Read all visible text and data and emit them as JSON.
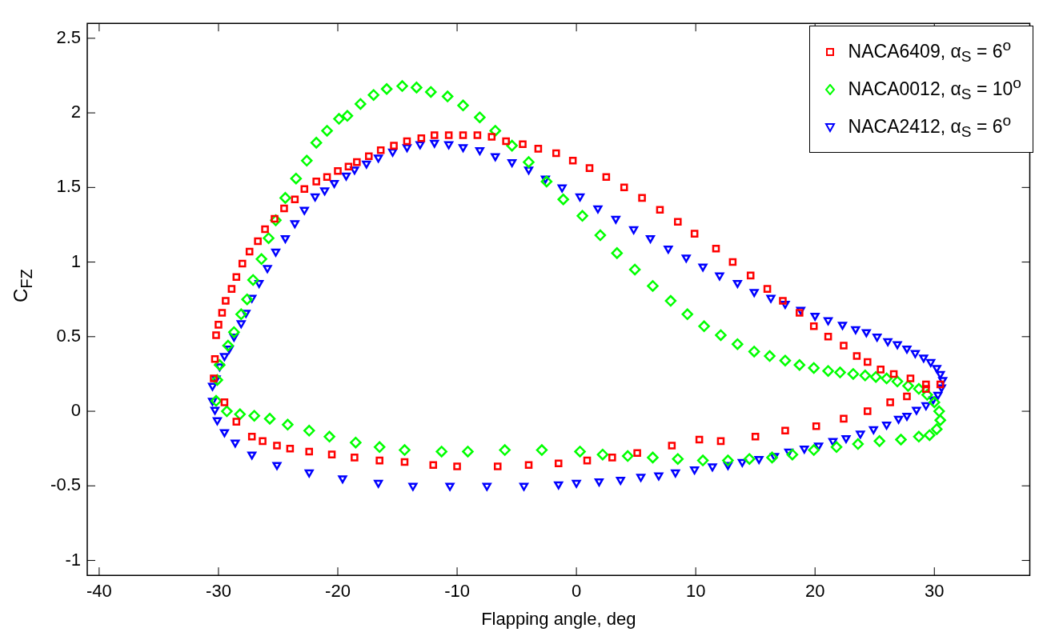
{
  "chart_data": {
    "type": "scatter",
    "xlabel": "Flapping angle, deg",
    "ylabel": "C$_{FZ}$",
    "xlim": [
      -41,
      38
    ],
    "xticks": [
      -40,
      -30,
      -20,
      -10,
      0,
      10,
      20,
      30
    ],
    "ylim": [
      -1.1,
      2.6
    ],
    "yticks": [
      -1,
      -0.5,
      0,
      0.5,
      1,
      1.5,
      2,
      2.5
    ],
    "legend": "top right",
    "series": [
      {
        "name": "NACA6409, α$_{S}$ = 6$^{o}$",
        "color": "#ff0000",
        "marker": "square",
        "x": [
          -30.4,
          -30.3,
          -30.2,
          -30,
          -29.7,
          -29.4,
          -28.9,
          -28.5,
          -28,
          -27.4,
          -26.7,
          -26.1,
          -25.3,
          -24.5,
          -23.6,
          -22.8,
          -21.8,
          -20.9,
          -20,
          -19.1,
          -18.4,
          -17.4,
          -16.4,
          -15.3,
          -14.2,
          -13,
          -11.9,
          -10.7,
          -9.5,
          -8.3,
          -7.1,
          -5.9,
          -4.5,
          -3.2,
          -1.7,
          -0.3,
          1.1,
          2.5,
          4,
          5.5,
          7,
          8.5,
          9.9,
          11.7,
          13.1,
          14.6,
          16,
          17.3,
          18.7,
          19.9,
          21.1,
          22.4,
          23.5,
          24.4,
          25.5,
          26.6,
          28,
          29.3,
          30.5,
          29.3,
          27.7,
          26.3,
          24.4,
          22.4,
          20.1,
          17.5,
          15,
          12.1,
          10.3,
          8,
          5.1,
          3,
          0.9,
          -1.5,
          -4,
          -6.6,
          -10,
          -12,
          -14.4,
          -16.5,
          -18.6,
          -20.5,
          -22.4,
          -24,
          -25.1,
          -26.3,
          -27.2,
          -28.5,
          -29.5
        ],
        "values": [
          0.22,
          0.35,
          0.51,
          0.58,
          0.66,
          0.74,
          0.82,
          0.9,
          0.99,
          1.07,
          1.14,
          1.22,
          1.29,
          1.36,
          1.42,
          1.49,
          1.54,
          1.57,
          1.61,
          1.64,
          1.67,
          1.71,
          1.75,
          1.78,
          1.81,
          1.83,
          1.85,
          1.85,
          1.85,
          1.85,
          1.84,
          1.81,
          1.79,
          1.76,
          1.73,
          1.68,
          1.63,
          1.57,
          1.5,
          1.43,
          1.35,
          1.27,
          1.19,
          1.09,
          1,
          0.91,
          0.82,
          0.74,
          0.66,
          0.57,
          0.5,
          0.44,
          0.37,
          0.33,
          0.28,
          0.25,
          0.22,
          0.18,
          0.18,
          0.15,
          0.1,
          0.06,
          0,
          -0.05,
          -0.1,
          -0.13,
          -0.17,
          -0.2,
          -0.19,
          -0.23,
          -0.28,
          -0.31,
          -0.33,
          -0.35,
          -0.36,
          -0.37,
          -0.37,
          -0.36,
          -0.34,
          -0.33,
          -0.31,
          -0.29,
          -0.27,
          -0.25,
          -0.23,
          -0.2,
          -0.17,
          -0.07,
          0.06
        ]
      },
      {
        "name": "NACA0012, α$_{S}$ = 10$^{o}$",
        "color": "#00ff00",
        "marker": "diamond",
        "x": [
          -30.2,
          -30.1,
          -29.9,
          -29.2,
          -28.7,
          -28.1,
          -27.6,
          -27.1,
          -26.4,
          -25.8,
          -25.2,
          -24.4,
          -23.5,
          -22.6,
          -21.8,
          -20.9,
          -19.9,
          -19.2,
          -18.1,
          -17,
          -15.9,
          -14.6,
          -13.4,
          -12.2,
          -10.8,
          -9.5,
          -8.1,
          -6.8,
          -5.4,
          -4,
          -2.5,
          -1.1,
          0.5,
          2,
          3.4,
          4.9,
          6.4,
          7.9,
          9.3,
          10.7,
          12.1,
          13.5,
          14.9,
          16.2,
          17.5,
          18.7,
          19.9,
          21.1,
          22.1,
          23.2,
          24.2,
          25.1,
          26,
          26.9,
          27.8,
          28.7,
          29.4,
          30,
          30.4,
          30.5,
          30.2,
          29.6,
          28.7,
          27.2,
          25.4,
          23.6,
          21.8,
          19.9,
          18.1,
          16.4,
          14.5,
          12.7,
          10.6,
          8.5,
          6.4,
          4.3,
          2.2,
          0.3,
          -2.9,
          -6,
          -9.1,
          -11.3,
          -14.4,
          -16.5,
          -18.5,
          -20.7,
          -22.4,
          -24.2,
          -25.7,
          -27,
          -28.2,
          -29.3
        ],
        "values": [
          0.07,
          0.21,
          0.31,
          0.44,
          0.53,
          0.65,
          0.75,
          0.88,
          1.02,
          1.16,
          1.28,
          1.43,
          1.56,
          1.68,
          1.8,
          1.88,
          1.96,
          1.98,
          2.06,
          2.12,
          2.16,
          2.18,
          2.17,
          2.14,
          2.11,
          2.05,
          1.97,
          1.88,
          1.78,
          1.67,
          1.54,
          1.42,
          1.31,
          1.18,
          1.06,
          0.95,
          0.84,
          0.74,
          0.65,
          0.57,
          0.51,
          0.45,
          0.4,
          0.37,
          0.34,
          0.31,
          0.29,
          0.27,
          0.26,
          0.25,
          0.24,
          0.23,
          0.22,
          0.2,
          0.17,
          0.15,
          0.11,
          0.06,
          0,
          -0.06,
          -0.12,
          -0.16,
          -0.17,
          -0.19,
          -0.2,
          -0.22,
          -0.24,
          -0.26,
          -0.29,
          -0.31,
          -0.32,
          -0.33,
          -0.33,
          -0.32,
          -0.31,
          -0.3,
          -0.29,
          -0.27,
          -0.26,
          -0.26,
          -0.27,
          -0.27,
          -0.26,
          -0.24,
          -0.21,
          -0.17,
          -0.13,
          -0.09,
          -0.05,
          -0.03,
          -0.02,
          0
        ]
      },
      {
        "name": "NACA2412, α$_{S}$ = 6$^{o}$",
        "color": "#0000ff",
        "marker": "triangle",
        "x": [
          -30.5,
          -30.5,
          -30.2,
          -29.9,
          -29.5,
          -29.1,
          -28.7,
          -28.1,
          -27.7,
          -27.2,
          -26.6,
          -25.9,
          -25.2,
          -24.4,
          -23.6,
          -22.8,
          -21.9,
          -21.1,
          -20.3,
          -19.3,
          -18.6,
          -17.6,
          -16.6,
          -15.4,
          -14.2,
          -13.1,
          -11.9,
          -10.7,
          -9.5,
          -8.1,
          -6.8,
          -5.4,
          -4,
          -2.6,
          -1.2,
          0.3,
          1.8,
          3.3,
          4.8,
          6.2,
          7.7,
          9.2,
          10.6,
          12,
          13.5,
          14.9,
          16.3,
          17.5,
          18.8,
          20,
          21.1,
          22.3,
          23.4,
          24.3,
          25.2,
          26.1,
          26.9,
          27.7,
          28.4,
          29.1,
          29.7,
          30.2,
          30.5,
          30.7,
          30.6,
          30.3,
          29.9,
          29.3,
          28.5,
          27.7,
          27,
          26,
          24.9,
          23.8,
          22.6,
          21.5,
          20.3,
          19.1,
          17.8,
          16.6,
          15.3,
          13.9,
          12.7,
          11.4,
          9.9,
          8.3,
          6.9,
          5.4,
          3.7,
          1.9,
          0,
          -1.5,
          -4.4,
          -7.5,
          -10.6,
          -13.7,
          -16.6,
          -19.6,
          -22.4,
          -25.1,
          -27.2,
          -28.6,
          -29.5,
          -30.1,
          -30.3
        ],
        "values": [
          0.07,
          0.17,
          0.22,
          0.3,
          0.37,
          0.42,
          0.5,
          0.59,
          0.66,
          0.76,
          0.86,
          0.96,
          1.07,
          1.16,
          1.26,
          1.35,
          1.44,
          1.48,
          1.53,
          1.58,
          1.62,
          1.66,
          1.7,
          1.74,
          1.77,
          1.79,
          1.8,
          1.79,
          1.77,
          1.75,
          1.71,
          1.67,
          1.62,
          1.56,
          1.5,
          1.44,
          1.36,
          1.29,
          1.22,
          1.16,
          1.09,
          1.03,
          0.97,
          0.91,
          0.86,
          0.8,
          0.76,
          0.72,
          0.68,
          0.64,
          0.61,
          0.58,
          0.55,
          0.53,
          0.5,
          0.47,
          0.45,
          0.42,
          0.39,
          0.36,
          0.33,
          0.29,
          0.25,
          0.21,
          0.16,
          0.11,
          0.08,
          0.04,
          0.01,
          -0.03,
          -0.05,
          -0.09,
          -0.12,
          -0.15,
          -0.18,
          -0.2,
          -0.23,
          -0.25,
          -0.27,
          -0.3,
          -0.32,
          -0.34,
          -0.36,
          -0.37,
          -0.39,
          -0.41,
          -0.43,
          -0.44,
          -0.46,
          -0.47,
          -0.48,
          -0.49,
          -0.5,
          -0.5,
          -0.5,
          -0.5,
          -0.48,
          -0.45,
          -0.41,
          -0.36,
          -0.29,
          -0.21,
          -0.14,
          -0.06,
          0.01
        ]
      }
    ]
  }
}
